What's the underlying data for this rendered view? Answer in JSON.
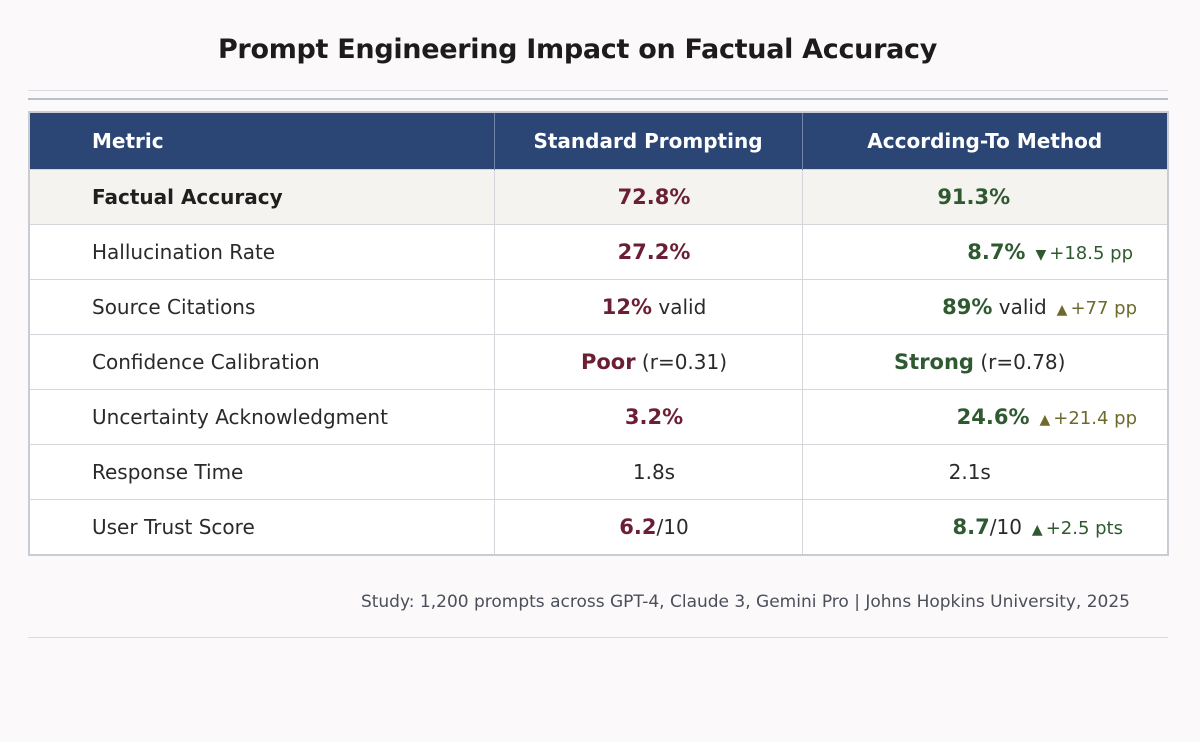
{
  "title": "Prompt Engineering Impact on Factual Accuracy",
  "columns": {
    "metric": "Metric",
    "standard": "Standard Prompting",
    "according_to": "According-To Method"
  },
  "rows": [
    {
      "metric": "Factual Accuracy",
      "standard": {
        "value": "72.8%",
        "suffix": ""
      },
      "according_to": {
        "value": "91.3%",
        "suffix": "",
        "delta_icon": "",
        "delta": ""
      }
    },
    {
      "metric": "Hallucination Rate",
      "standard": {
        "value": "27.2%",
        "suffix": ""
      },
      "according_to": {
        "value": "8.7%",
        "suffix": "",
        "delta_icon": "▼",
        "delta": "+18.5 pp"
      }
    },
    {
      "metric": "Source Citations",
      "standard": {
        "value": "12%",
        "suffix": " valid"
      },
      "according_to": {
        "value": "89%",
        "suffix": " valid",
        "delta_icon": "▲",
        "delta": "+77 pp"
      }
    },
    {
      "metric": "Confidence Calibration",
      "standard": {
        "value": "Poor",
        "suffix": " (r=0.31)"
      },
      "according_to": {
        "value": "Strong",
        "suffix": " (r=0.78)",
        "delta_icon": "",
        "delta": ""
      }
    },
    {
      "metric": "Uncertainty Acknowledgment",
      "standard": {
        "value": "3.2%",
        "suffix": ""
      },
      "according_to": {
        "value": "24.6%",
        "suffix": "",
        "delta_icon": "▲",
        "delta": "+21.4 pp"
      }
    },
    {
      "metric": "Response Time",
      "standard": {
        "value": "1.8s",
        "suffix": ""
      },
      "according_to": {
        "value": "2.1s",
        "suffix": "",
        "delta_icon": "",
        "delta": ""
      }
    },
    {
      "metric": "User Trust Score",
      "standard": {
        "value": "6.2",
        "suffix": "/10"
      },
      "according_to": {
        "value": "8.7",
        "suffix": "/10",
        "delta_icon": "▲",
        "delta": "+2.5 pts"
      }
    }
  ],
  "footnote": "Study: 1,200 prompts across GPT-4, Claude 3, Gemini Pro | Johns Hopkins University, 2025",
  "colors": {
    "header_bg": "#2b4574",
    "standard_value": "#6b1f34",
    "according_value": "#2f5a31",
    "delta_olive": "#6e6a2c"
  }
}
